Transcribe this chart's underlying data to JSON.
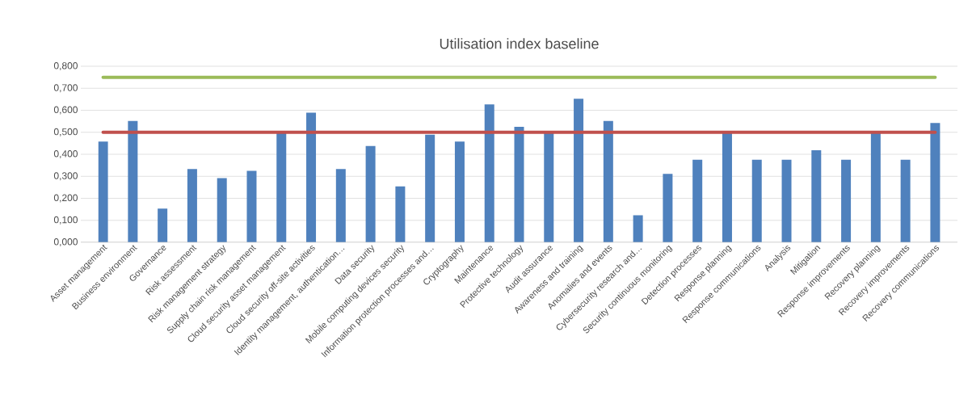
{
  "chart_data": {
    "type": "bar",
    "title": "Utilisation index baseline",
    "categories": [
      "Asset management",
      "Business environment",
      "Governance",
      "Risk assessment",
      "Risk management strategy",
      "Supply chain risk management",
      "Cloud security asset management",
      "Cloud security off-site activities",
      "Identity management, authentication…",
      "Data security",
      "Mobile computing devices security",
      "Information protection processes and…",
      "Cryptography",
      "Maintenance",
      "Protective technology",
      "Audit assurance",
      "Awareness and training",
      "Anomalies and events",
      "Cybersecurity research and…",
      "Security continuous monitoring",
      "Detection processes",
      "Response planning",
      "Response communications",
      "Analysis",
      "Mitigation",
      "Response improvements",
      "Recovery planning",
      "Recovery improvements",
      "Recovery communications"
    ],
    "values": [
      0.458,
      0.551,
      0.153,
      0.333,
      0.292,
      0.325,
      0.5,
      0.589,
      0.333,
      0.438,
      0.254,
      0.489,
      0.458,
      0.627,
      0.525,
      0.5,
      0.652,
      0.551,
      0.123,
      0.311,
      0.375,
      0.5,
      0.375,
      0.375,
      0.418,
      0.375,
      0.5,
      0.375,
      0.542
    ],
    "color": "#4f81bd",
    "ylim": [
      0,
      0.8
    ],
    "yticks": [
      {
        "value": 0,
        "label": "0,000"
      },
      {
        "value": 0.1,
        "label": "0,100"
      },
      {
        "value": 0.2,
        "label": "0,200"
      },
      {
        "value": 0.3,
        "label": "0,300"
      },
      {
        "value": 0.4,
        "label": "0,400"
      },
      {
        "value": 0.5,
        "label": "0,500"
      },
      {
        "value": 0.6,
        "label": "0,600"
      },
      {
        "value": 0.7,
        "label": "0,700"
      },
      {
        "value": 0.8,
        "label": "0,800"
      }
    ],
    "grid": "y",
    "ref_lines": [
      {
        "axis": "y",
        "value": 0.75,
        "color": "#9bbb59"
      },
      {
        "axis": "y",
        "value": 0.5,
        "color": "#c0504d"
      }
    ]
  }
}
